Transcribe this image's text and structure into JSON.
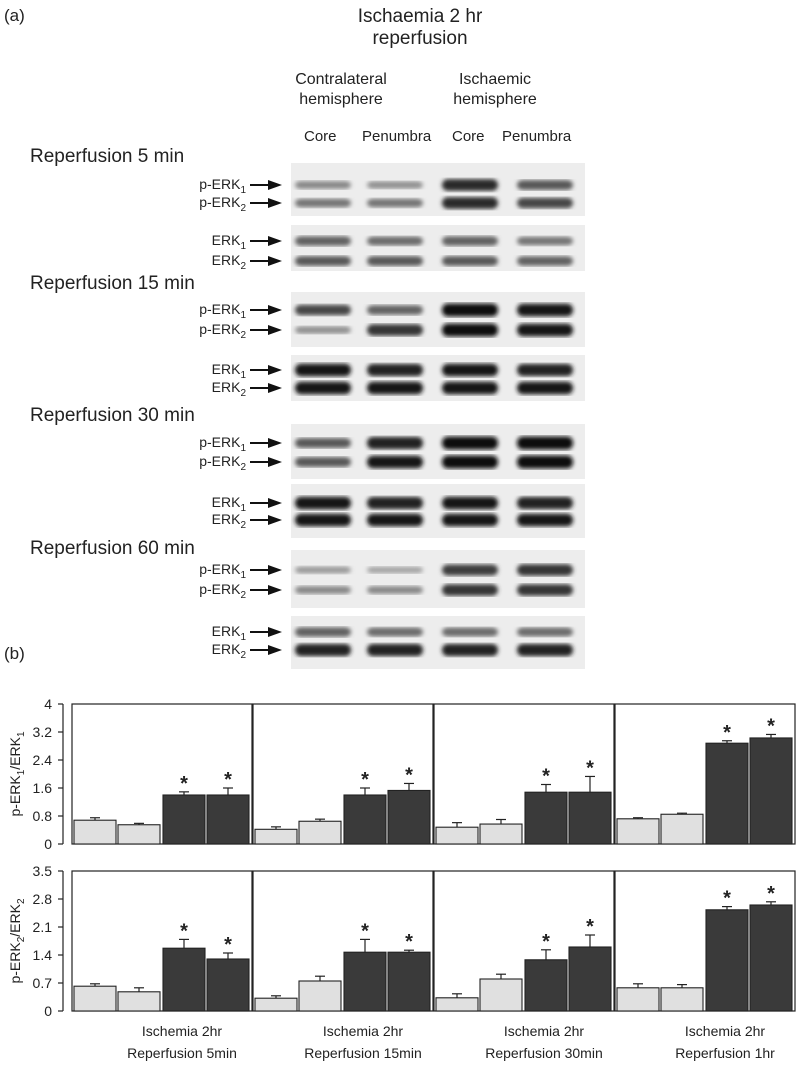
{
  "panel_a": {
    "letter": "(a)",
    "title_line1": "Ischaemia 2 hr",
    "title_line2": "reperfusion",
    "hemispheres": [
      {
        "line1": "Contralateral",
        "line2": "hemisphere"
      },
      {
        "line1": "Ischaemic",
        "line2": "hemisphere"
      }
    ],
    "lanes": [
      "Core",
      "Penumbra",
      "Core",
      "Penumbra"
    ],
    "groups": [
      {
        "title": "Reperfusion 5 min"
      },
      {
        "title": "Reperfusion 15 min"
      },
      {
        "title": "Reperfusion 30 min"
      },
      {
        "title": "Reperfusion 60 min"
      }
    ],
    "band_labels": {
      "p1": "p-ERK",
      "p1_sub": "1",
      "p2": "p-ERK",
      "p2_sub": "2",
      "t1": "ERK",
      "t1_sub": "1",
      "t2": "ERK",
      "t2_sub": "2"
    }
  },
  "panel_b": {
    "letter": "(b)",
    "star": "*",
    "x_groups": [
      {
        "line1": "Ischemia 2hr",
        "line2": "Reperfusion 5min"
      },
      {
        "line1": "Ischemia 2hr",
        "line2": "Reperfusion 15min"
      },
      {
        "line1": "Ischemia 2hr",
        "line2": "Reperfusion 30min"
      },
      {
        "line1": "Ischemia 2hr",
        "line2": "Reperfusion 1hr"
      }
    ]
  },
  "chart_data": [
    {
      "type": "bar",
      "ylabel": "p-ERK1/ERK1",
      "ylim": [
        0,
        4
      ],
      "yticks": [
        "0",
        "0.8",
        "1.6",
        "2.4",
        "3.2",
        "4"
      ],
      "groups": [
        "Ischemia 2hr Reperfusion 5min",
        "Ischemia 2hr Reperfusion 15min",
        "Ischemia 2hr Reperfusion 30min",
        "Ischemia 2hr Reperfusion 1hr"
      ],
      "bar_colors": [
        "#e0e0e0",
        "#e0e0e0",
        "#3a3a3a",
        "#3a3a3a"
      ],
      "values": [
        [
          0.68,
          0.55,
          1.4,
          1.4
        ],
        [
          0.42,
          0.65,
          1.4,
          1.53
        ],
        [
          0.48,
          0.57,
          1.48,
          1.48
        ],
        [
          0.72,
          0.85,
          2.88,
          3.03
        ]
      ],
      "errors": [
        [
          0.07,
          0.04,
          0.09,
          0.2
        ],
        [
          0.07,
          0.06,
          0.2,
          0.2
        ],
        [
          0.13,
          0.13,
          0.22,
          0.45
        ],
        [
          0.03,
          0.03,
          0.07,
          0.1
        ]
      ],
      "significant": [
        [
          false,
          false,
          true,
          true
        ],
        [
          false,
          false,
          true,
          true
        ],
        [
          false,
          false,
          true,
          true
        ],
        [
          false,
          false,
          true,
          true
        ]
      ]
    },
    {
      "type": "bar",
      "ylabel": "p-ERK2/ERK2",
      "ylim": [
        0,
        3.5
      ],
      "yticks": [
        "0",
        "0.7",
        "1.4",
        "2.1",
        "2.8",
        "3.5"
      ],
      "groups": [
        "Ischemia 2hr Reperfusion 5min",
        "Ischemia 2hr Reperfusion 15min",
        "Ischemia 2hr Reperfusion 30min",
        "Ischemia 2hr Reperfusion 1hr"
      ],
      "bar_colors": [
        "#e0e0e0",
        "#e0e0e0",
        "#3a3a3a",
        "#3a3a3a"
      ],
      "values": [
        [
          0.62,
          0.48,
          1.57,
          1.3
        ],
        [
          0.32,
          0.75,
          1.47,
          1.47
        ],
        [
          0.33,
          0.8,
          1.28,
          1.6
        ],
        [
          0.58,
          0.58,
          2.53,
          2.65
        ]
      ],
      "errors": [
        [
          0.06,
          0.1,
          0.22,
          0.15
        ],
        [
          0.06,
          0.12,
          0.32,
          0.05
        ],
        [
          0.1,
          0.12,
          0.25,
          0.3
        ],
        [
          0.1,
          0.08,
          0.08,
          0.08
        ]
      ],
      "significant": [
        [
          false,
          false,
          true,
          true
        ],
        [
          false,
          false,
          true,
          true
        ],
        [
          false,
          false,
          true,
          true
        ],
        [
          false,
          false,
          true,
          true
        ]
      ]
    }
  ]
}
